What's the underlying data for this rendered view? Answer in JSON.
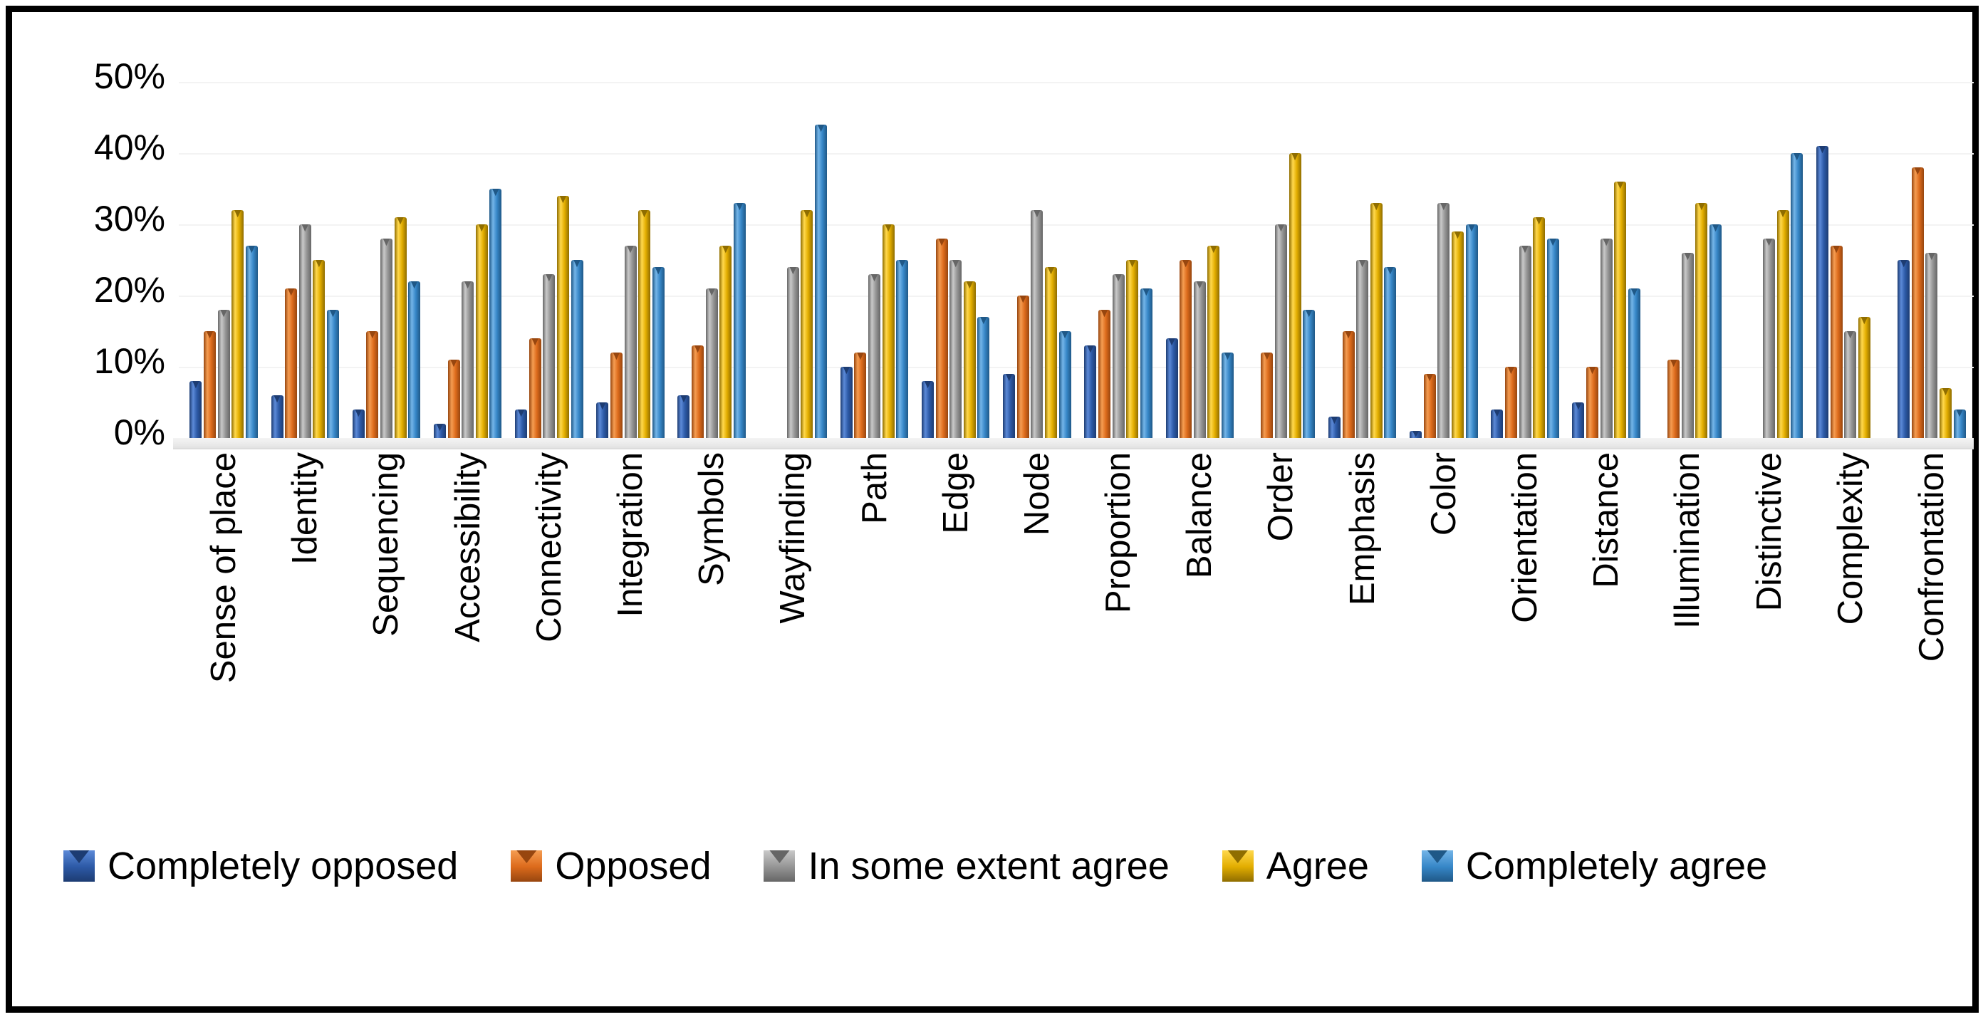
{
  "chart_data": {
    "type": "bar",
    "title": "",
    "xlabel": "",
    "ylabel": "",
    "ylim": [
      0,
      50
    ],
    "yticks": [
      "0%",
      "10%",
      "20%",
      "30%",
      "40%",
      "50%"
    ],
    "grid": "faint-horizontal",
    "legend_position": "bottom",
    "categories": [
      "Sense of place",
      "Identity",
      "Sequencing",
      "Accessibility",
      "Connectivity",
      "Integration",
      "Symbols",
      "Wayfinding",
      "Path",
      "Edge",
      "Node",
      "Proportion",
      "Balance",
      "Order",
      "Emphasis",
      "Color",
      "Orientation",
      "Distance",
      "Illumination",
      "Distinctive",
      "Complexity",
      "Confrontation"
    ],
    "series": [
      {
        "name": "Completely opposed",
        "color": "#2d5aa7",
        "color_light": "#5c8ad8",
        "color_dark": "#1d3c72",
        "values": [
          8,
          6,
          4,
          2,
          4,
          5,
          6,
          0,
          10,
          8,
          9,
          13,
          14,
          0,
          3,
          1,
          4,
          5,
          0,
          0,
          41,
          25
        ]
      },
      {
        "name": "Opposed",
        "color": "#dd6b1c",
        "color_light": "#f59d52",
        "color_dark": "#97460f",
        "values": [
          15,
          21,
          15,
          11,
          14,
          12,
          13,
          0,
          12,
          28,
          20,
          18,
          25,
          12,
          15,
          9,
          10,
          10,
          11,
          0,
          27,
          38
        ]
      },
      {
        "name": "In some extent agree",
        "color": "#969696",
        "color_light": "#c9c9c9",
        "color_dark": "#666666",
        "values": [
          18,
          30,
          28,
          22,
          23,
          27,
          21,
          24,
          23,
          25,
          32,
          23,
          22,
          30,
          25,
          33,
          27,
          28,
          26,
          28,
          15,
          26
        ]
      },
      {
        "name": "Agree",
        "color": "#e3ae00",
        "color_light": "#ffd84d",
        "color_dark": "#8f6d00",
        "values": [
          32,
          25,
          31,
          30,
          34,
          32,
          27,
          32,
          30,
          22,
          24,
          25,
          27,
          40,
          33,
          29,
          31,
          36,
          33,
          32,
          17,
          7
        ]
      },
      {
        "name": "Completely agree",
        "color": "#3787c8",
        "color_light": "#74b5e8",
        "color_dark": "#1f5887",
        "values": [
          27,
          18,
          22,
          35,
          25,
          24,
          33,
          44,
          25,
          17,
          15,
          21,
          12,
          18,
          24,
          30,
          28,
          21,
          30,
          40,
          0,
          4
        ]
      }
    ]
  }
}
